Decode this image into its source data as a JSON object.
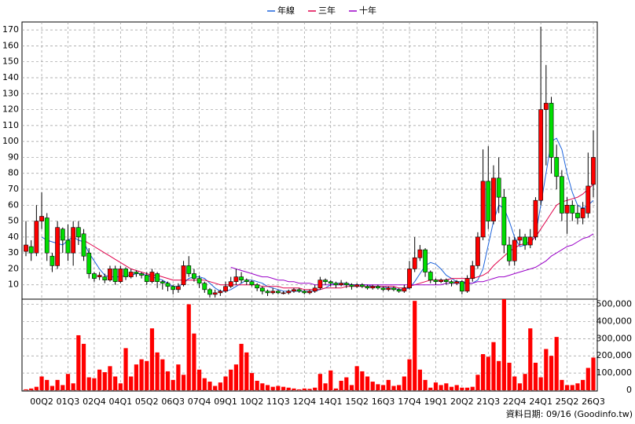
{
  "chart_data": {
    "type": "candlestick",
    "categories": [
      null,
      null,
      null,
      "00Q2",
      null,
      null,
      null,
      null,
      "01Q3",
      null,
      null,
      null,
      null,
      "02Q4",
      null,
      null,
      null,
      null,
      "04Q1",
      null,
      null,
      null,
      null,
      "05Q2",
      null,
      null,
      null,
      null,
      "06Q3",
      null,
      null,
      null,
      null,
      "07Q4",
      null,
      null,
      null,
      null,
      "09Q1",
      null,
      null,
      null,
      null,
      "10Q2",
      null,
      null,
      null,
      null,
      "11Q3",
      null,
      null,
      null,
      null,
      "12Q4",
      null,
      null,
      null,
      null,
      "14Q1",
      null,
      null,
      null,
      null,
      "15Q2",
      null,
      null,
      null,
      null,
      "16Q3",
      null,
      null,
      null,
      null,
      "17Q4",
      null,
      null,
      null,
      null,
      "19Q1",
      null,
      null,
      null,
      null,
      "20Q2",
      null,
      null,
      null,
      null,
      "21Q3",
      null,
      null,
      null,
      null,
      "22Q4",
      null,
      null,
      null,
      null,
      "24Q1",
      null,
      null,
      null,
      null,
      "25Q2",
      null,
      null,
      null,
      null,
      "26Q3"
    ],
    "open": [
      31,
      34,
      30,
      50,
      52,
      28,
      22,
      45,
      38,
      30,
      46,
      42,
      30,
      17,
      15,
      15,
      13,
      20,
      12,
      20,
      15,
      18,
      17,
      16,
      12,
      17,
      12,
      11,
      9,
      7,
      10,
      22,
      17,
      14,
      11,
      7,
      4,
      5,
      6,
      9,
      12,
      15,
      13,
      12,
      10,
      8,
      6,
      5,
      6,
      5,
      5,
      6,
      7,
      6,
      5,
      6,
      8,
      13,
      12,
      11,
      10,
      11,
      10,
      9,
      10,
      9,
      8,
      9,
      8,
      7,
      8,
      7,
      6,
      8,
      20,
      27,
      32,
      18,
      13,
      12,
      13,
      12,
      11,
      12,
      6,
      14,
      22,
      40,
      75,
      50,
      77,
      65,
      35,
      25,
      38,
      40,
      35,
      40,
      63,
      120,
      124,
      90,
      78,
      55,
      60,
      55,
      52,
      55,
      73
    ],
    "high": [
      50,
      38,
      60,
      68,
      55,
      30,
      50,
      46,
      48,
      50,
      50,
      45,
      33,
      18,
      18,
      17,
      22,
      22,
      22,
      21,
      20,
      19,
      18,
      18,
      20,
      18,
      13,
      12,
      10,
      11,
      25,
      28,
      20,
      16,
      12,
      8,
      7,
      7,
      12,
      15,
      20,
      18,
      14,
      13,
      11,
      9,
      7,
      8,
      7,
      6,
      7,
      8,
      8,
      7,
      7,
      10,
      15,
      14,
      13,
      12,
      13,
      12,
      11,
      11,
      11,
      10,
      10,
      10,
      9,
      9,
      9,
      8,
      10,
      25,
      40,
      35,
      33,
      19,
      14,
      14,
      14,
      13,
      13,
      13,
      16,
      25,
      43,
      95,
      97,
      85,
      90,
      70,
      40,
      40,
      45,
      42,
      45,
      65,
      172,
      148,
      128,
      98,
      82,
      65,
      63,
      60,
      62,
      93,
      107
    ],
    "low": [
      28,
      25,
      28,
      45,
      25,
      18,
      20,
      30,
      25,
      22,
      35,
      25,
      14,
      12,
      13,
      11,
      12,
      10,
      11,
      13,
      14,
      15,
      14,
      10,
      11,
      8,
      7,
      6,
      4,
      5,
      9,
      15,
      12,
      8,
      5,
      2,
      2,
      3,
      5,
      8,
      10,
      11,
      10,
      9,
      6,
      4,
      3,
      4,
      4,
      4,
      4,
      5,
      5,
      4,
      4,
      5,
      7,
      10,
      9,
      8,
      9,
      8,
      7,
      8,
      8,
      7,
      7,
      7,
      6,
      6,
      6,
      5,
      5,
      7,
      18,
      25,
      15,
      11,
      10,
      11,
      10,
      9,
      10,
      4,
      5,
      12,
      20,
      38,
      45,
      48,
      55,
      30,
      22,
      22,
      35,
      32,
      33,
      38,
      60,
      85,
      80,
      70,
      50,
      42,
      50,
      48,
      48,
      52,
      65
    ],
    "close": [
      35,
      30,
      50,
      53,
      30,
      22,
      46,
      38,
      30,
      46,
      40,
      28,
      17,
      14,
      16,
      13,
      20,
      12,
      20,
      15,
      18,
      17,
      16,
      12,
      18,
      12,
      11,
      9,
      7,
      9,
      22,
      17,
      14,
      11,
      7,
      4,
      5,
      6,
      9,
      12,
      15,
      13,
      12,
      10,
      8,
      6,
      5,
      6,
      5,
      5,
      6,
      7,
      6,
      5,
      6,
      8,
      13,
      12,
      11,
      10,
      11,
      10,
      9,
      10,
      9,
      8,
      9,
      8,
      7,
      8,
      7,
      6,
      8,
      20,
      27,
      32,
      18,
      13,
      12,
      13,
      12,
      11,
      12,
      6,
      14,
      22,
      40,
      75,
      50,
      77,
      65,
      35,
      25,
      38,
      40,
      35,
      40,
      63,
      120,
      124,
      90,
      78,
      55,
      60,
      55,
      52,
      58,
      72,
      90
    ],
    "volume": [
      5000,
      10000,
      20000,
      80000,
      60000,
      25000,
      60000,
      30000,
      95000,
      40000,
      320000,
      270000,
      75000,
      70000,
      120000,
      105000,
      140000,
      80000,
      40000,
      245000,
      80000,
      150000,
      180000,
      170000,
      360000,
      220000,
      180000,
      110000,
      60000,
      150000,
      90000,
      500000,
      330000,
      120000,
      70000,
      50000,
      25000,
      45000,
      80000,
      120000,
      150000,
      270000,
      220000,
      100000,
      55000,
      40000,
      30000,
      20000,
      25000,
      20000,
      15000,
      10000,
      5000,
      10000,
      8000,
      15000,
      95000,
      40000,
      115000,
      10000,
      55000,
      75000,
      30000,
      140000,
      110000,
      80000,
      50000,
      35000,
      30000,
      60000,
      25000,
      30000,
      80000,
      180000,
      520000,
      120000,
      60000,
      15000,
      45000,
      30000,
      40000,
      20000,
      30000,
      15000,
      15000,
      20000,
      90000,
      210000,
      195000,
      280000,
      170000,
      530000,
      160000,
      80000,
      40000,
      95000,
      360000,
      160000,
      75000,
      240000,
      200000,
      310000,
      60000,
      30000,
      30000,
      40000,
      60000,
      130000,
      190000
    ],
    "up_color": "#ff0000",
    "down_color": "#00dd00",
    "volume_color": "#ff0000",
    "series": [
      {
        "name": "年線",
        "color": "#1e64dc",
        "values": [
          null,
          null,
          null,
          40,
          38,
          37,
          36,
          35,
          38,
          40,
          38,
          37,
          30,
          25,
          20,
          16,
          15,
          15,
          15,
          16,
          16,
          17,
          17,
          16,
          15,
          14,
          13,
          11,
          9,
          9,
          11,
          14,
          15,
          15,
          14,
          11,
          8,
          6,
          6,
          7,
          9,
          11,
          13,
          13,
          12,
          11,
          9,
          8,
          7,
          6,
          6,
          6,
          6,
          6,
          6,
          6,
          7,
          8,
          10,
          11,
          11,
          11,
          10,
          10,
          10,
          10,
          9,
          9,
          9,
          8,
          8,
          7,
          7,
          8,
          12,
          17,
          22,
          24,
          23,
          20,
          16,
          14,
          12,
          12,
          11,
          11,
          13,
          20,
          35,
          50,
          60,
          58,
          50,
          40,
          34,
          35,
          36,
          41,
          60,
          80,
          100,
          102,
          95,
          80,
          68,
          60,
          58,
          60,
          63
        ]
      },
      {
        "name": "三年",
        "color": "#e0004a",
        "values": [
          null,
          null,
          null,
          null,
          null,
          null,
          null,
          null,
          null,
          null,
          null,
          38,
          36,
          34,
          32,
          30,
          28,
          26,
          24,
          22,
          20,
          19,
          18,
          17,
          16,
          16,
          15,
          14,
          13,
          13,
          13,
          13,
          13,
          13,
          13,
          12,
          11,
          10,
          10,
          10,
          10,
          10,
          10,
          10,
          10,
          9,
          9,
          9,
          9,
          8,
          8,
          8,
          8,
          7,
          7,
          7,
          7,
          8,
          8,
          8,
          8,
          9,
          9,
          9,
          9,
          9,
          9,
          9,
          9,
          9,
          9,
          8,
          8,
          9,
          10,
          11,
          12,
          13,
          13,
          13,
          13,
          14,
          14,
          14,
          14,
          14,
          15,
          16,
          18,
          22,
          25,
          28,
          31,
          33,
          35,
          36,
          37,
          40,
          45,
          50,
          55,
          60,
          62,
          63,
          64,
          65,
          67,
          70,
          73
        ]
      },
      {
        "name": "十年",
        "color": "#9a00c8",
        "values": [
          null,
          null,
          null,
          null,
          null,
          null,
          null,
          null,
          null,
          null,
          null,
          null,
          null,
          null,
          null,
          null,
          null,
          null,
          null,
          null,
          null,
          null,
          null,
          null,
          null,
          null,
          null,
          null,
          null,
          null,
          null,
          null,
          null,
          null,
          null,
          null,
          null,
          null,
          null,
          21,
          20,
          19,
          18,
          17,
          16,
          15,
          15,
          14,
          13,
          13,
          12,
          12,
          11,
          11,
          11,
          10,
          10,
          10,
          10,
          10,
          10,
          10,
          10,
          10,
          10,
          10,
          10,
          10,
          10,
          10,
          10,
          10,
          10,
          10,
          10,
          10,
          10,
          10,
          10,
          10,
          11,
          11,
          11,
          11,
          11,
          11,
          12,
          12,
          13,
          14,
          15,
          15,
          16,
          17,
          18,
          19,
          20,
          21,
          23,
          25,
          28,
          30,
          32,
          34,
          35,
          37,
          39,
          40,
          42
        ]
      }
    ],
    "ylim": [
      1,
      174
    ],
    "yticks": [
      10,
      20,
      30,
      40,
      50,
      60,
      70,
      80,
      90,
      100,
      110,
      120,
      130,
      140,
      150,
      160,
      170
    ],
    "y2lim": [
      0,
      530000
    ],
    "y2ticks": [
      0,
      {
        "value": 100000,
        "label": "100,000"
      },
      {
        "value": 200000,
        "label": "200,000"
      },
      {
        "value": 300000,
        "label": "300,000"
      },
      {
        "value": 400000,
        "label": "400,000"
      },
      {
        "value": 500000,
        "label": "500,000"
      }
    ],
    "grid": true,
    "legend": "top",
    "source": "資料日期: 09/16  (Goodinfo.tw)"
  }
}
